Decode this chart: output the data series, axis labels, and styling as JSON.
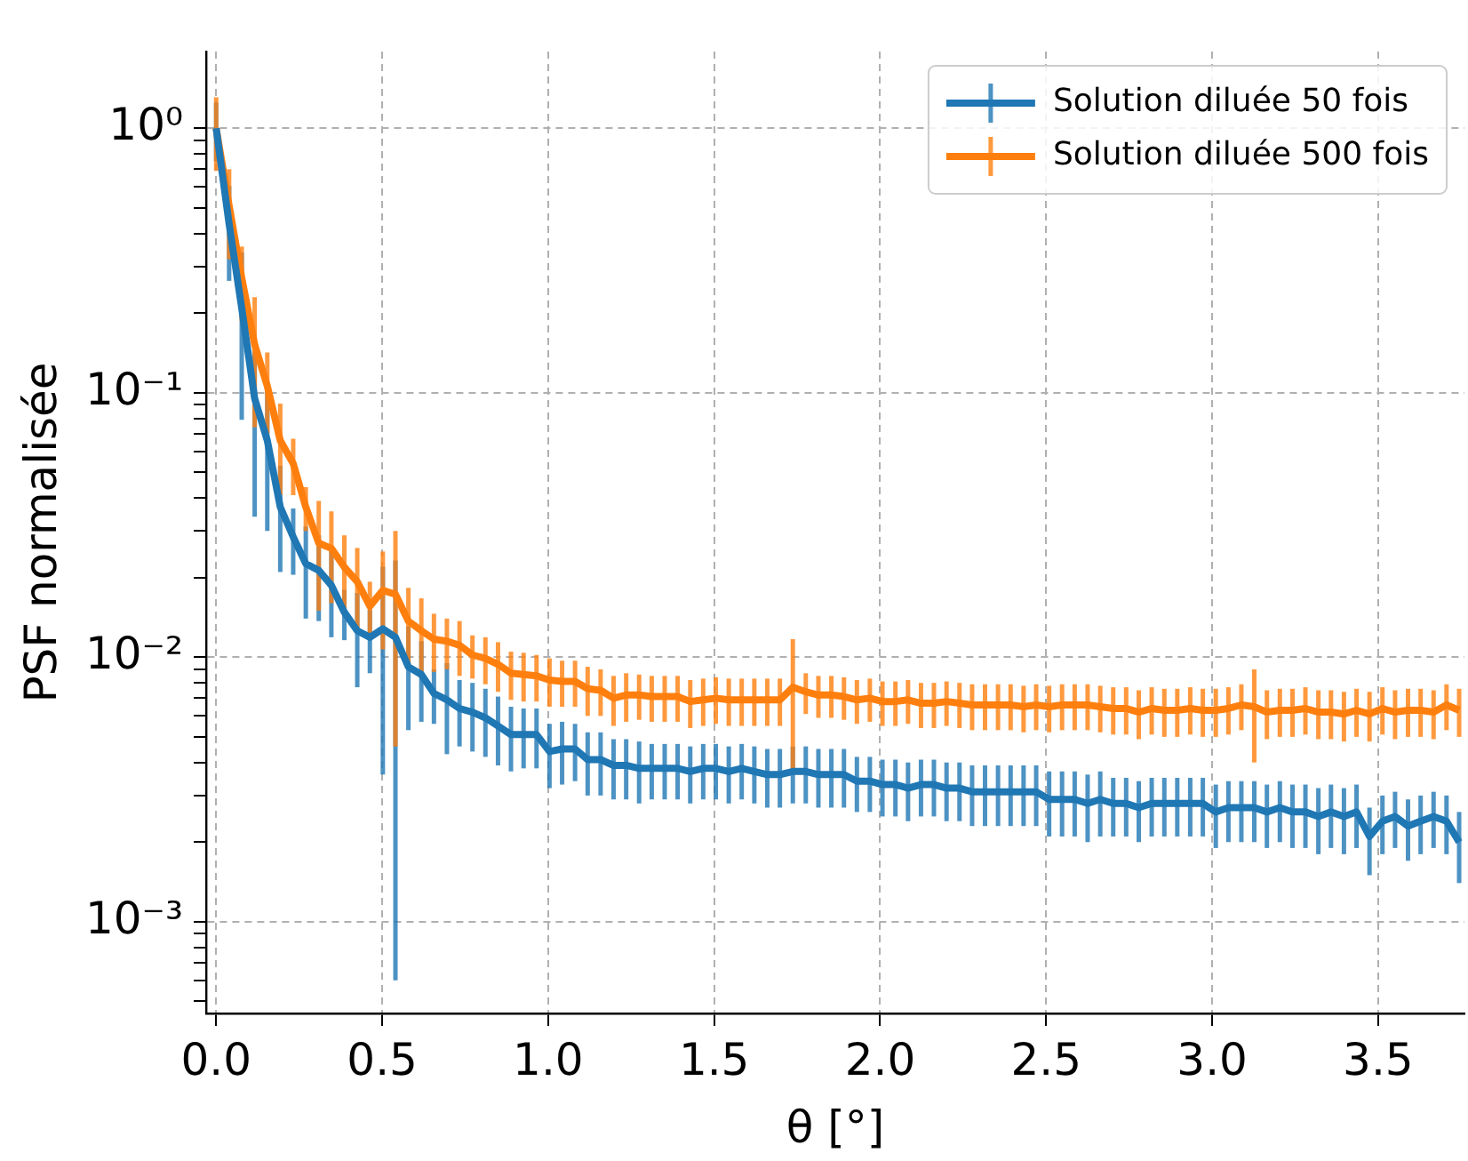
{
  "chart_data": {
    "type": "line",
    "xlabel": "θ [°]",
    "ylabel": "PSF normalisée",
    "log": "y",
    "grid": true,
    "legend": "top right",
    "xlim": [
      -0.03,
      3.76
    ],
    "ylim": [
      0.00045,
      1.95
    ],
    "xticks": [
      {
        "value": 0,
        "label": "0.0"
      },
      0.5,
      {
        "value": 1,
        "label": "1.0"
      },
      1.5,
      {
        "value": 2,
        "label": "2.0"
      },
      2.5,
      {
        "value": 3,
        "label": "3.0"
      },
      3.5
    ],
    "yticks": [
      {
        "value": 0.0005,
        "label": null
      },
      {
        "value": 0.0006,
        "label": null
      },
      {
        "value": 0.0007,
        "label": null
      },
      {
        "value": 0.0008,
        "label": null
      },
      {
        "value": 0.0009,
        "label": null
      },
      {
        "value": 0.001,
        "label": "10⁻³"
      },
      {
        "value": 0.002,
        "label": null
      },
      {
        "value": 0.003,
        "label": null
      },
      {
        "value": 0.004,
        "label": null
      },
      {
        "value": 0.005,
        "label": null
      },
      {
        "value": 0.006,
        "label": null
      },
      {
        "value": 0.007,
        "label": null
      },
      {
        "value": 0.008,
        "label": null
      },
      {
        "value": 0.009,
        "label": null
      },
      {
        "value": 0.01,
        "label": "10⁻²"
      },
      {
        "value": 0.02,
        "label": null
      },
      {
        "value": 0.03,
        "label": null
      },
      {
        "value": 0.04,
        "label": null
      },
      {
        "value": 0.05,
        "label": null
      },
      {
        "value": 0.06,
        "label": null
      },
      {
        "value": 0.07,
        "label": null
      },
      {
        "value": 0.08,
        "label": null
      },
      {
        "value": 0.09,
        "label": null
      },
      {
        "value": 0.1,
        "label": "10⁻¹"
      },
      {
        "value": 0.2,
        "label": null
      },
      {
        "value": 0.3,
        "label": null
      },
      {
        "value": 0.4,
        "label": null
      },
      {
        "value": 0.5,
        "label": null
      },
      {
        "value": 0.6,
        "label": null
      },
      {
        "value": 0.7,
        "label": null
      },
      {
        "value": 0.8,
        "label": null
      },
      {
        "value": 0.9,
        "label": null
      },
      {
        "value": 1,
        "label": "10⁰"
      }
    ],
    "x": [
      0,
      0.039,
      0.077,
      0.116,
      0.154,
      0.193,
      0.232,
      0.27,
      0.309,
      0.347,
      0.386,
      0.425,
      0.463,
      0.502,
      0.54,
      0.579,
      0.618,
      0.656,
      0.695,
      0.733,
      0.772,
      0.811,
      0.849,
      0.888,
      0.926,
      0.965,
      1.004,
      1.042,
      1.081,
      1.119,
      1.158,
      1.197,
      1.235,
      1.274,
      1.312,
      1.351,
      1.39,
      1.428,
      1.467,
      1.505,
      1.544,
      1.583,
      1.621,
      1.66,
      1.698,
      1.737,
      1.776,
      1.814,
      1.853,
      1.891,
      1.93,
      1.969,
      2.007,
      2.046,
      2.084,
      2.123,
      2.162,
      2.2,
      2.239,
      2.277,
      2.316,
      2.355,
      2.393,
      2.432,
      2.47,
      2.509,
      2.548,
      2.586,
      2.625,
      2.663,
      2.702,
      2.741,
      2.779,
      2.818,
      2.856,
      2.895,
      2.934,
      2.972,
      3.011,
      3.049,
      3.088,
      3.127,
      3.165,
      3.204,
      3.242,
      3.281,
      3.32,
      3.358,
      3.397,
      3.435,
      3.474,
      3.513,
      3.551,
      3.59,
      3.628,
      3.667,
      3.706,
      3.744
    ],
    "series": [
      {
        "name": "Solution diluée 50 fois",
        "color": "#1f77b4",
        "values": [
          1.0,
          0.435,
          0.209,
          0.095,
          0.066,
          0.037,
          0.0285,
          0.0226,
          0.0213,
          0.0187,
          0.0148,
          0.0126,
          0.0119,
          0.0128,
          0.0119,
          0.0092,
          0.0086,
          0.0073,
          0.0069,
          0.0064,
          0.0062,
          0.0059,
          0.0055,
          0.0051,
          0.0051,
          0.0051,
          0.0044,
          0.0045,
          0.0045,
          0.0041,
          0.0041,
          0.0039,
          0.0039,
          0.0038,
          0.0038,
          0.0038,
          0.0038,
          0.0037,
          0.0038,
          0.0038,
          0.0037,
          0.0038,
          0.0037,
          0.0036,
          0.0036,
          0.0037,
          0.0037,
          0.0036,
          0.0036,
          0.0036,
          0.0034,
          0.0034,
          0.0033,
          0.0033,
          0.0032,
          0.0033,
          0.0033,
          0.0032,
          0.0032,
          0.0031,
          0.0031,
          0.0031,
          0.0031,
          0.0031,
          0.0031,
          0.0029,
          0.0029,
          0.0029,
          0.0028,
          0.0029,
          0.0028,
          0.0028,
          0.0027,
          0.0028,
          0.0028,
          0.0028,
          0.0028,
          0.0028,
          0.0026,
          0.0027,
          0.0027,
          0.0027,
          0.0026,
          0.0027,
          0.0026,
          0.0026,
          0.0025,
          0.0026,
          0.0025,
          0.0026,
          0.0021,
          0.0024,
          0.0025,
          0.0023,
          0.0024,
          0.0025,
          0.0024,
          0.002
        ],
        "errors": [
          0.25,
          0.17,
          0.13,
          0.061,
          0.036,
          0.016,
          0.008,
          0.0086,
          0.0076,
          0.0068,
          0.0032,
          0.0049,
          0.0032,
          0.0092,
          0.0113,
          0.0039,
          0.0029,
          0.0017,
          0.0026,
          0.0018,
          0.0018,
          0.0017,
          0.0016,
          0.0014,
          0.0013,
          0.0013,
          0.0012,
          0.0012,
          0.0011,
          0.0011,
          0.0011,
          0.001,
          0.001,
          0.001,
          0.0009,
          0.0009,
          0.0009,
          0.0009,
          0.0009,
          0.0009,
          0.0009,
          0.0009,
          0.0009,
          0.0009,
          0.0009,
          0.0009,
          0.0009,
          0.0009,
          0.0009,
          0.0009,
          0.0008,
          0.0008,
          0.0008,
          0.0008,
          0.0008,
          0.0008,
          0.0008,
          0.0008,
          0.0008,
          0.0008,
          0.0008,
          0.0008,
          0.0008,
          0.0008,
          0.0008,
          0.0008,
          0.0008,
          0.0008,
          0.0008,
          0.0008,
          0.0007,
          0.0007,
          0.0007,
          0.0007,
          0.0007,
          0.0007,
          0.0007,
          0.0007,
          0.0007,
          0.0007,
          0.0007,
          0.0007,
          0.0007,
          0.0007,
          0.0007,
          0.0007,
          0.0007,
          0.0007,
          0.0007,
          0.0007,
          0.0006,
          0.0006,
          0.0006,
          0.0006,
          0.0006,
          0.0006,
          0.0006,
          0.0006
        ]
      },
      {
        "name": "Solution diluée 500 fois",
        "color": "#ff7f0e",
        "values": [
          1.0,
          0.51,
          0.272,
          0.152,
          0.106,
          0.066,
          0.054,
          0.037,
          0.027,
          0.0258,
          0.0219,
          0.0193,
          0.0156,
          0.0179,
          0.0173,
          0.0137,
          0.0126,
          0.0117,
          0.0115,
          0.0111,
          0.0102,
          0.0099,
          0.0094,
          0.0087,
          0.0086,
          0.0085,
          0.0082,
          0.0081,
          0.0081,
          0.0076,
          0.0075,
          0.007,
          0.0072,
          0.0072,
          0.0071,
          0.0071,
          0.0071,
          0.0068,
          0.0069,
          0.007,
          0.0069,
          0.0069,
          0.0069,
          0.0069,
          0.0069,
          0.0077,
          0.0074,
          0.0072,
          0.0072,
          0.0071,
          0.0069,
          0.007,
          0.0068,
          0.0068,
          0.0069,
          0.0067,
          0.0067,
          0.0068,
          0.0067,
          0.0066,
          0.0066,
          0.0066,
          0.0066,
          0.0065,
          0.0066,
          0.0065,
          0.0066,
          0.0066,
          0.0066,
          0.0065,
          0.0064,
          0.0064,
          0.0062,
          0.0064,
          0.0063,
          0.0063,
          0.0064,
          0.0063,
          0.0063,
          0.0064,
          0.0066,
          0.0065,
          0.0062,
          0.0063,
          0.0063,
          0.0064,
          0.0062,
          0.0062,
          0.0061,
          0.0063,
          0.0061,
          0.0064,
          0.0062,
          0.0063,
          0.0063,
          0.0062,
          0.0066,
          0.0063
        ],
        "errors": [
          0.31,
          0.19,
          0.085,
          0.078,
          0.036,
          0.025,
          0.013,
          0.007,
          0.012,
          0.0098,
          0.007,
          0.0066,
          0.0037,
          0.0072,
          0.0127,
          0.0046,
          0.0041,
          0.0029,
          0.0025,
          0.0026,
          0.0019,
          0.002,
          0.002,
          0.0018,
          0.0018,
          0.0017,
          0.0017,
          0.0016,
          0.0016,
          0.0016,
          0.0015,
          0.0015,
          0.0015,
          0.0014,
          0.0014,
          0.0014,
          0.0014,
          0.0014,
          0.0014,
          0.0014,
          0.0014,
          0.0014,
          0.0014,
          0.0014,
          0.0014,
          0.004,
          0.0013,
          0.0013,
          0.0013,
          0.0013,
          0.0013,
          0.0013,
          0.0013,
          0.0013,
          0.0013,
          0.0013,
          0.0013,
          0.0013,
          0.0013,
          0.0013,
          0.0013,
          0.0013,
          0.0013,
          0.0013,
          0.0013,
          0.0013,
          0.0013,
          0.0013,
          0.0013,
          0.0013,
          0.0013,
          0.0013,
          0.0013,
          0.0013,
          0.0013,
          0.0013,
          0.0013,
          0.0013,
          0.0013,
          0.0013,
          0.0013,
          0.0025,
          0.0013,
          0.0013,
          0.0013,
          0.0013,
          0.0013,
          0.0013,
          0.0013,
          0.0013,
          0.0013,
          0.0013,
          0.0013,
          0.0013,
          0.0013,
          0.0013,
          0.0013,
          0.0013
        ]
      }
    ]
  }
}
